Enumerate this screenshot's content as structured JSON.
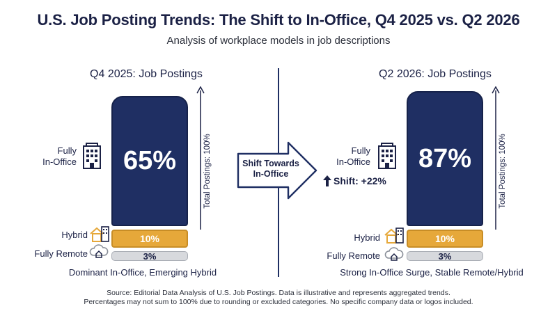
{
  "title": "U.S. Job Posting Trends: The Shift to In-Office, Q4 2025 vs. Q2 2026",
  "subtitle": "Analysis of workplace models in job descriptions",
  "colors": {
    "in_office": "#1f2f63",
    "hybrid": "#e6a83a",
    "remote": "#d7d9dd",
    "text": "#1b2145"
  },
  "icons": {
    "in_office": "office-building-icon",
    "hybrid": "house-building-icon",
    "remote": "cloud-house-icon",
    "shift": "up-arrow-icon"
  },
  "arrow": {
    "text_line1": "Shift Towards",
    "text_line2": "In-Office"
  },
  "shift_badge": "Shift: +22%",
  "footer": {
    "line1": "Source: Editorial Data Analysis of U.S. Job Postings. Data is illustrative and represents aggregated trends.",
    "line2": "Percentages may not sum to 100% due to rounding or excluded categories. No specific company data or logos included."
  },
  "chart_data": [
    {
      "type": "bar",
      "title": "Q4 2025: Job Postings",
      "ylabel": "Total Postings: 100%",
      "categories": [
        "Fully In-Office",
        "Hybrid",
        "Fully Remote"
      ],
      "category_labels": {
        "in_office": [
          "Fully",
          "In-Office"
        ],
        "hybrid": "Hybrid",
        "remote": "Fully Remote"
      },
      "values": [
        65,
        10,
        3
      ],
      "data_labels": [
        "65%",
        "10%",
        "3%"
      ],
      "caption": "Dominant In-Office, Emerging Hybrid"
    },
    {
      "type": "bar",
      "title": "Q2 2026: Job Postings",
      "ylabel": "Total Postings: 100%",
      "categories": [
        "Fully In-Office",
        "Hybrid",
        "Fully Remote"
      ],
      "category_labels": {
        "in_office": [
          "Fully",
          "In-Office"
        ],
        "hybrid": "Hybrid",
        "remote": "Fully Remote"
      },
      "values": [
        87,
        10,
        3
      ],
      "data_labels": [
        "87%",
        "10%",
        "3%"
      ],
      "caption": "Strong In-Office Surge, Stable Remote/Hybrid"
    }
  ]
}
